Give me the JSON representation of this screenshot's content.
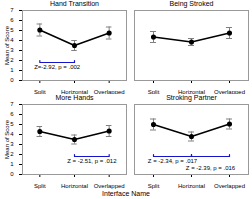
{
  "chart_data": [
    {
      "type": "line",
      "title": "Hand Transition",
      "categories": [
        "Split",
        "Horizontal",
        "Overlapped"
      ],
      "values": [
        5.05,
        3.5,
        4.75
      ],
      "errors": [
        0.6,
        0.5,
        0.6
      ],
      "color": "black",
      "marker": "o",
      "ylabel": "Mean of Score",
      "ylim": [
        0,
        7
      ],
      "yticks": [
        0,
        1,
        2,
        3,
        4,
        5,
        6,
        7
      ],
      "annotations": [
        {
          "type": "bracket",
          "x": [
            "Split",
            "Horizontal"
          ],
          "y": 1.8,
          "height": 0.2,
          "text": "Z=-2.92, p = .002",
          "color": "#1414cc"
        }
      ]
    },
    {
      "type": "line",
      "title": "Being Stroked",
      "categories": [
        "Split",
        "Horizontal",
        "Overlapped"
      ],
      "values": [
        4.35,
        3.85,
        4.75
      ],
      "errors": [
        0.55,
        0.35,
        0.55
      ],
      "color": "black",
      "marker": "o",
      "ylim": [
        0,
        7
      ],
      "yticks": [
        0,
        1,
        2,
        3,
        4,
        5,
        6,
        7
      ],
      "tick_labels": "x"
    },
    {
      "type": "line",
      "title": "More Hands",
      "categories": [
        "Split",
        "Horizontal",
        "Overlapped"
      ],
      "values": [
        4.3,
        3.5,
        4.35
      ],
      "errors": [
        0.5,
        0.45,
        0.55
      ],
      "color": "black",
      "marker": "o",
      "ylabel": "Mean of Score",
      "xlabel": "Interface Name",
      "ylim": [
        0,
        7
      ],
      "yticks": [
        0,
        1,
        2,
        3,
        4,
        5,
        6,
        7
      ],
      "annotations": [
        {
          "type": "bracket",
          "x": [
            "Horizontal",
            "Overlapped"
          ],
          "y": 1.8,
          "height": 0.2,
          "text": "Z = -2.51, p = .012",
          "color": "#1414cc"
        }
      ]
    },
    {
      "type": "line",
      "title": "Stroking Partner",
      "categories": [
        "Split",
        "Horizontal",
        "Overlapped"
      ],
      "values": [
        5.0,
        3.8,
        5.05
      ],
      "errors": [
        0.55,
        0.45,
        0.5
      ],
      "color": "black",
      "marker": "o",
      "ylim": [
        0,
        7
      ],
      "yticks": [
        0,
        1,
        2,
        3,
        4,
        5,
        6,
        7
      ],
      "tick_labels": "x",
      "annotations": [
        {
          "type": "bracket",
          "x": [
            "Split",
            "Horizontal"
          ],
          "y": 1.8,
          "height": 0.2,
          "text": "Z = -2.34, p = .017",
          "color": "#1414cc"
        },
        {
          "type": "bracket",
          "x": [
            "Horizontal",
            "Overlapped"
          ],
          "y": 1.8,
          "height": 0.2,
          "text": "Z = -2.39, p = .016",
          "color": "#1414cc"
        }
      ]
    }
  ]
}
